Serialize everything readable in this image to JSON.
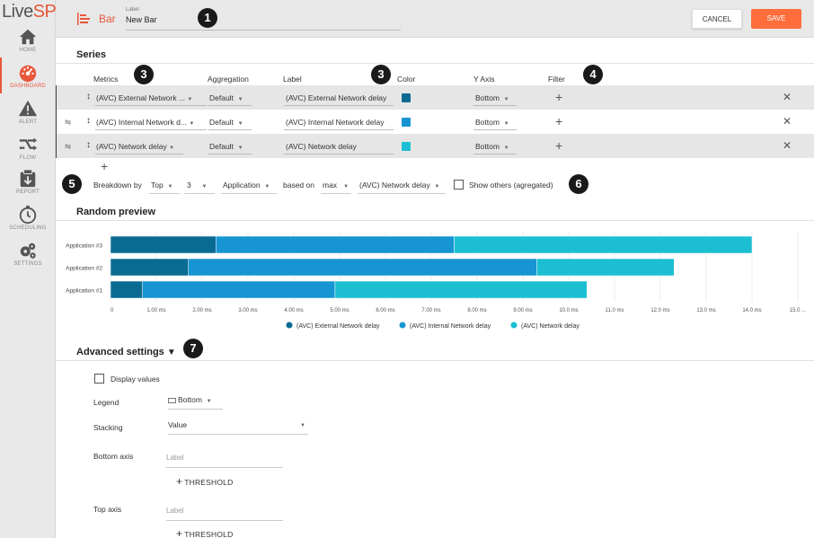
{
  "sidebar": {
    "logo_text": "LiveSP",
    "items": [
      {
        "label": "HOME",
        "icon": "home-icon"
      },
      {
        "label": "DASHBOARD",
        "icon": "dashboard-icon",
        "active": true
      },
      {
        "label": "ALERT",
        "icon": "alert-icon"
      },
      {
        "label": "FLOW",
        "icon": "flow-icon"
      },
      {
        "label": "REPORT",
        "icon": "report-icon"
      },
      {
        "label": "SCHEDULING",
        "icon": "clock-icon"
      },
      {
        "label": "SETTINGS",
        "icon": "gear-icon"
      }
    ]
  },
  "header": {
    "widget_type": "Bar",
    "label_caption": "Label",
    "label_value": "New Bar",
    "cancel_label": "CANCEL",
    "save_label": "SAVE"
  },
  "callouts": [
    "1",
    "3",
    "3",
    "4",
    "5",
    "6",
    "7"
  ],
  "series": {
    "title": "Series",
    "columns": [
      "Metrics",
      "Aggregation",
      "Label",
      "Color",
      "Y Axis",
      "Filter"
    ],
    "rows": [
      {
        "metric": "(AVC) External Network ...",
        "aggregation": "Default",
        "label": "(AVC) External Network delay",
        "color": "#0a6b92",
        "y_axis": "Bottom"
      },
      {
        "metric": "(AVC) Internal Network d...",
        "aggregation": "Default",
        "label": "(AVC) Internal Network delay",
        "color": "#1695d2",
        "y_axis": "Bottom"
      },
      {
        "metric": "(AVC) Network delay",
        "aggregation": "Default",
        "label": "(AVC) Network delay",
        "color": "#1cbfd2",
        "y_axis": "Bottom"
      }
    ]
  },
  "breakdown": {
    "by_label": "Breakdown by",
    "mode": "Top",
    "count": "3",
    "field": "Application",
    "based_on_label": "based on",
    "agg": "max",
    "metric": "(AVC) Network delay",
    "show_others_label": "Show others (agregated)"
  },
  "preview": {
    "title": "Random preview"
  },
  "chart_data": {
    "type": "bar",
    "orientation": "horizontal",
    "stacked": true,
    "categories": [
      "Application #3",
      "Application #2",
      "Application #1"
    ],
    "series": [
      {
        "name": "(AVC) External Network delay",
        "color": "#0a6b92",
        "values": [
          2.3,
          1.7,
          0.7
        ]
      },
      {
        "name": "(AVC) Internal Network delay",
        "color": "#1695d2",
        "values": [
          5.2,
          7.6,
          4.2
        ]
      },
      {
        "name": "(AVC) Network delay",
        "color": "#1cbfd2",
        "values": [
          6.5,
          3.0,
          5.5
        ]
      }
    ],
    "xlim": [
      0,
      15
    ],
    "xticks": [
      "0",
      "1.00 ms",
      "2.00 ms",
      "3.00 ms",
      "4.00 ms",
      "5.00 ms",
      "6.00 ms",
      "7.00 ms",
      "8.00 ms",
      "9.00 ms",
      "10.0 ms",
      "11.0 ms",
      "12.0 ms",
      "13.0 ms",
      "14.0 ms",
      "15.0 ..."
    ],
    "grid": true,
    "legend": "bottom"
  },
  "advanced": {
    "title": "Advanced settings",
    "display_values_label": "Display values",
    "legend_label": "Legend",
    "legend_value": "Bottom",
    "stacking_label": "Stacking",
    "stacking_value": "Value",
    "bottom_axis_label": "Bottom axis",
    "bottom_axis_placeholder": "Label",
    "threshold_label": "THRESHOLD",
    "top_axis_label": "Top axis",
    "top_axis_placeholder": "Label"
  }
}
